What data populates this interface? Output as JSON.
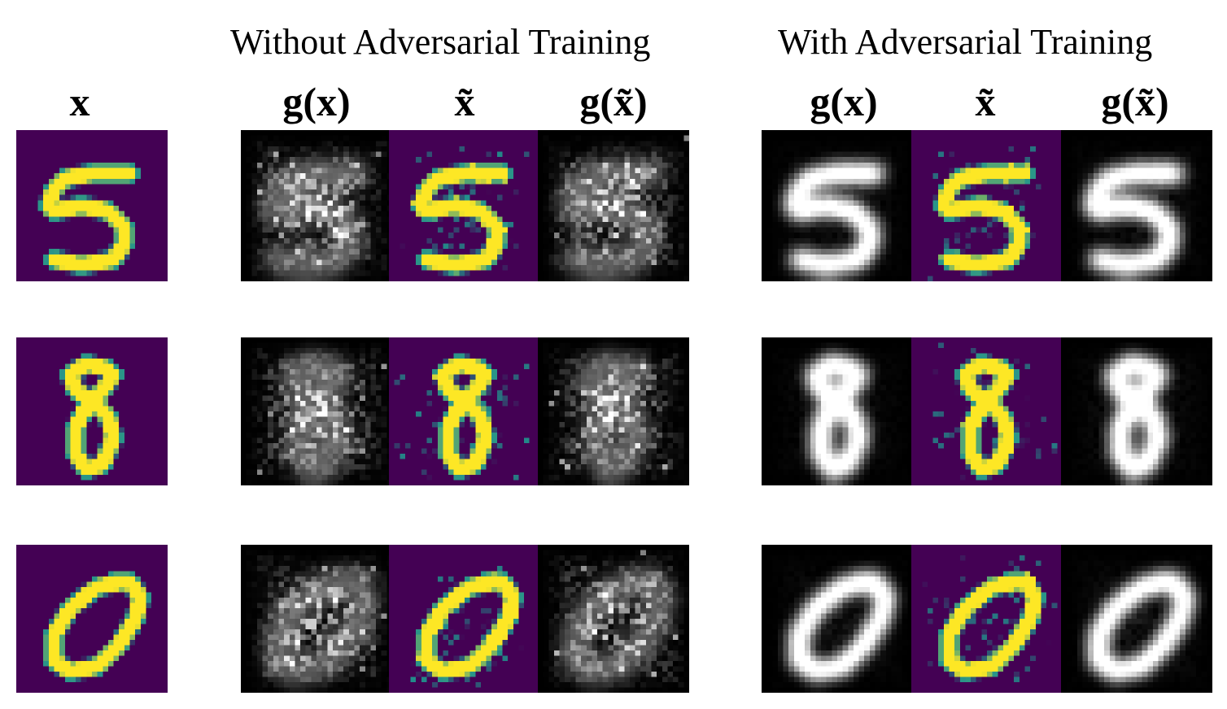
{
  "titles": {
    "without": "Without Adversarial Training",
    "with": "With Adversarial Training"
  },
  "column_labels": {
    "x": "x",
    "gx": "g(x)",
    "xt": "x̃",
    "gxt": "g(x̃)"
  },
  "colors": {
    "viridis_low": "#440154",
    "viridis_mid": "#21918c",
    "viridis_high": "#fde725",
    "gray_low": "#000000",
    "gray_high": "#ffffff"
  },
  "rows": [
    {
      "digit": "5"
    },
    {
      "digit": "8"
    },
    {
      "digit": "0"
    }
  ],
  "panels": [
    {
      "group": "input",
      "kind": "x",
      "colormap": "viridis",
      "noise": 0.0,
      "blur": 0.0
    },
    {
      "group": "without",
      "kind": "gx",
      "colormap": "gray",
      "noise": 0.9,
      "blur": 0.0
    },
    {
      "group": "without",
      "kind": "xt",
      "colormap": "viridis",
      "noise": 0.35,
      "blur": 0.0
    },
    {
      "group": "without",
      "kind": "gxt",
      "colormap": "gray",
      "noise": 0.9,
      "blur": 0.0
    },
    {
      "group": "with",
      "kind": "gx",
      "colormap": "gray",
      "noise": 0.1,
      "blur": 1.0
    },
    {
      "group": "with",
      "kind": "xt",
      "colormap": "viridis",
      "noise": 0.3,
      "blur": 0.0
    },
    {
      "group": "with",
      "kind": "gxt",
      "colormap": "gray",
      "noise": 0.12,
      "blur": 1.0
    }
  ]
}
